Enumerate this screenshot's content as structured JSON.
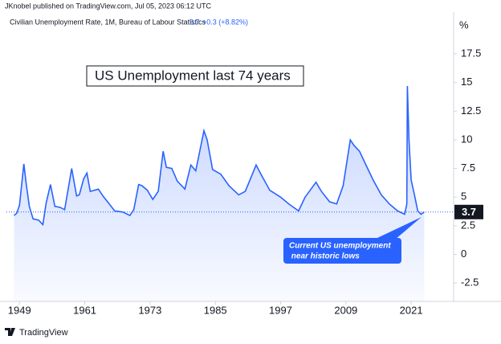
{
  "header": {
    "publisher": "JKnobel published on TradingView.com, Jul 05, 2023 06:12 UTC",
    "legend": {
      "label": "Civilian Unemployment Rate, 1M, Bureau of Labour Statistics",
      "value": "3.7",
      "change": "+0.3 (+8.82%)"
    }
  },
  "footer": {
    "brand": "TradingView"
  },
  "chart_data": {
    "type": "line",
    "title": "US Unemployment last 74 years",
    "annotation": [
      "Current US unemployment",
      " near historic lows"
    ],
    "y_unit": "%",
    "last_value": 3.7,
    "color": "#2962ff",
    "x": [
      1948.0,
      1948.5,
      1949.0,
      1949.8,
      1950.2,
      1950.8,
      1951.5,
      1952.5,
      1953.3,
      1953.9,
      1954.7,
      1955.5,
      1956.5,
      1957.3,
      1958.6,
      1959.5,
      1960.0,
      1960.8,
      1961.4,
      1962.0,
      1963.5,
      1964.5,
      1965.5,
      1966.5,
      1968.0,
      1969.3,
      1970.0,
      1970.9,
      1971.5,
      1972.5,
      1973.5,
      1974.5,
      1975.4,
      1976.0,
      1977.0,
      1978.0,
      1979.4,
      1980.5,
      1981.4,
      1982.9,
      1983.5,
      1984.5,
      1986.0,
      1987.5,
      1989.3,
      1990.5,
      1992.5,
      1993.5,
      1995.0,
      1997.0,
      1998.5,
      2000.3,
      2001.5,
      2003.5,
      2004.5,
      2006.0,
      2007.3,
      2008.5,
      2009.8,
      2010.5,
      2011.5,
      2012.5,
      2014.0,
      2015.5,
      2017.0,
      2018.5,
      2019.8,
      2020.2,
      2020.3,
      2020.6,
      2021.0,
      2021.6,
      2022.2,
      2022.8,
      2023.4
    ],
    "values": [
      3.4,
      3.6,
      4.3,
      7.9,
      6.3,
      4.2,
      3.1,
      3.0,
      2.6,
      4.5,
      6.1,
      4.2,
      4.1,
      3.9,
      7.5,
      5.1,
      5.2,
      6.6,
      7.1,
      5.5,
      5.7,
      5.0,
      4.4,
      3.8,
      3.7,
      3.4,
      3.9,
      6.1,
      6.0,
      5.6,
      4.8,
      5.5,
      9.0,
      7.6,
      7.5,
      6.4,
      5.7,
      7.8,
      7.3,
      10.8,
      10.0,
      7.4,
      7.0,
      6.0,
      5.2,
      5.5,
      7.8,
      6.9,
      5.6,
      5.0,
      4.4,
      3.8,
      5.0,
      6.3,
      5.5,
      4.6,
      4.4,
      6.0,
      10.0,
      9.5,
      9.0,
      8.0,
      6.5,
      5.2,
      4.4,
      3.8,
      3.5,
      4.4,
      14.7,
      10.0,
      6.5,
      5.2,
      3.8,
      3.5,
      3.7
    ],
    "xlim": [
      1946.6,
      2028.8
    ],
    "xticks": [
      1949,
      1961,
      1973,
      1985,
      1997,
      2009,
      2021
    ],
    "ylim": [
      -4.1,
      20.8
    ],
    "yticks": [
      17.5,
      15,
      12.5,
      10,
      7.5,
      5,
      2.5,
      0,
      -2.5
    ],
    "grid": false
  }
}
